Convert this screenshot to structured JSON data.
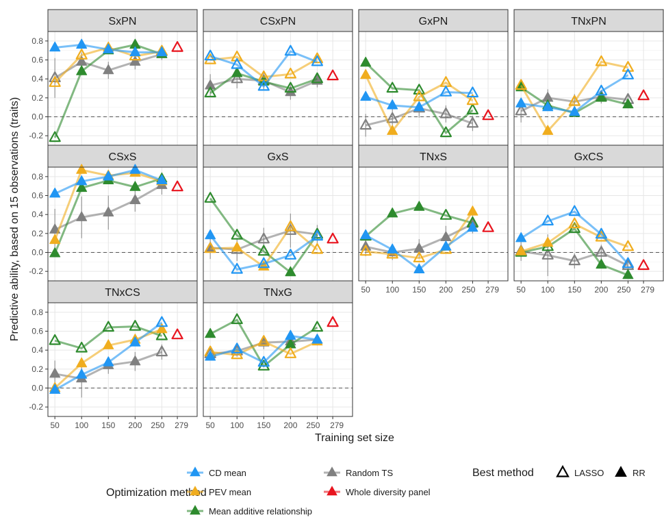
{
  "chart_data": {
    "type": "line",
    "ylabel": "Predictive ability, based on 15 observations (traits)",
    "xlabel": "Training set size",
    "x_tick_labels": [
      "50",
      "100",
      "150",
      "200",
      "250",
      "279"
    ],
    "y_tick_labels": [
      "-0.2",
      "0.0",
      "0.2",
      "0.4",
      "0.6",
      "0.8"
    ],
    "x_values": [
      50,
      100,
      150,
      200,
      250
    ],
    "whole_panel_x": 279,
    "ylim": [
      -0.3,
      0.9
    ],
    "reference_line_y": 0,
    "grid": true,
    "legend": {
      "title": "Optimization method",
      "items": [
        {
          "label": "CD mean",
          "color": "#2196F3"
        },
        {
          "label": "PEV mean",
          "color": "#F0AD1E"
        },
        {
          "label": "Mean additive relationship",
          "color": "#2E8B2E"
        },
        {
          "label": "Random TS",
          "color": "#808080"
        },
        {
          "label": "Whole diversity panel",
          "color": "#E8141E"
        }
      ],
      "shape_title": "Best method",
      "shape_items": [
        {
          "label": "LASSO",
          "shape": "open-triangle"
        },
        {
          "label": "RR",
          "shape": "filled-triangle"
        }
      ]
    },
    "panels": [
      {
        "title": "SxPN",
        "whole": 0.73,
        "series": [
          {
            "method": "CD mean",
            "y": [
              0.73,
              0.76,
              0.71,
              0.68,
              0.68
            ],
            "filled": [
              true,
              true,
              true,
              true,
              true
            ]
          },
          {
            "method": "PEV mean",
            "y": [
              0.36,
              0.65,
              0.73,
              0.64,
              0.69
            ],
            "filled": [
              false,
              false,
              true,
              false,
              false
            ]
          },
          {
            "method": "Mean additive relationship",
            "y": [
              -0.22,
              0.48,
              0.7,
              0.76,
              0.66
            ],
            "filled": [
              false,
              true,
              true,
              true,
              true
            ]
          },
          {
            "method": "Random TS",
            "y": [
              0.41,
              0.58,
              0.49,
              0.58,
              0.66
            ],
            "filled": [
              false,
              true,
              true,
              true,
              true
            ],
            "err": [
              0.21,
              0.1,
              0.09,
              0.08,
              0.06
            ]
          }
        ]
      },
      {
        "title": "CSxPN",
        "whole": 0.43,
        "series": [
          {
            "method": "CD mean",
            "y": [
              0.64,
              0.55,
              0.32,
              0.69,
              0.58
            ],
            "filled": [
              false,
              false,
              false,
              false,
              false
            ]
          },
          {
            "method": "PEV mean",
            "y": [
              0.6,
              0.63,
              0.42,
              0.45,
              0.61
            ],
            "filled": [
              false,
              false,
              false,
              false,
              false
            ]
          },
          {
            "method": "Mean additive relationship",
            "y": [
              0.25,
              0.46,
              0.37,
              0.3,
              0.4
            ],
            "filled": [
              false,
              true,
              true,
              false,
              false
            ]
          },
          {
            "method": "Random TS",
            "y": [
              0.33,
              0.4,
              0.38,
              0.26,
              0.38
            ],
            "filled": [
              true,
              false,
              false,
              true,
              true
            ],
            "err": [
              0.12,
              0.1,
              0.09,
              0.08,
              0.07
            ]
          }
        ]
      },
      {
        "title": "GxPN",
        "whole": 0.01,
        "series": [
          {
            "method": "CD mean",
            "y": [
              0.21,
              0.12,
              0.1,
              0.26,
              0.25
            ],
            "filled": [
              true,
              true,
              true,
              false,
              false
            ]
          },
          {
            "method": "PEV mean",
            "y": [
              0.44,
              -0.15,
              0.21,
              0.36,
              0.17
            ],
            "filled": [
              true,
              true,
              false,
              false,
              false
            ]
          },
          {
            "method": "Mean additive relationship",
            "y": [
              0.57,
              0.3,
              0.28,
              -0.17,
              0.07
            ],
            "filled": [
              true,
              false,
              false,
              false,
              false
            ]
          },
          {
            "method": "Random TS",
            "y": [
              -0.09,
              -0.02,
              0.09,
              0.03,
              -0.07
            ],
            "filled": [
              false,
              false,
              false,
              false,
              false
            ],
            "err": [
              0.12,
              0.1,
              0.1,
              0.09,
              0.08
            ]
          }
        ]
      },
      {
        "title": "TNxPN",
        "whole": 0.22,
        "series": [
          {
            "method": "CD mean",
            "y": [
              0.14,
              0.1,
              0.05,
              0.27,
              0.44
            ],
            "filled": [
              true,
              true,
              true,
              false,
              false
            ]
          },
          {
            "method": "PEV mean",
            "y": [
              0.33,
              -0.15,
              0.16,
              0.58,
              0.52
            ],
            "filled": [
              false,
              true,
              false,
              false,
              false
            ]
          },
          {
            "method": "Mean additive relationship",
            "y": [
              0.31,
              0.12,
              0.04,
              0.2,
              0.13
            ],
            "filled": [
              true,
              true,
              true,
              true,
              true
            ]
          },
          {
            "method": "Random TS",
            "y": [
              0.06,
              0.2,
              0.16,
              0.21,
              0.18
            ],
            "filled": [
              false,
              true,
              false,
              false,
              false
            ],
            "err": [
              0.12,
              0.09,
              0.08,
              0.07,
              0.07
            ]
          }
        ]
      },
      {
        "title": "CSxS",
        "whole": 0.69,
        "series": [
          {
            "method": "CD mean",
            "y": [
              0.62,
              0.75,
              0.8,
              0.87,
              0.76
            ],
            "filled": [
              true,
              true,
              true,
              true,
              true
            ]
          },
          {
            "method": "PEV mean",
            "y": [
              0.13,
              0.87,
              0.81,
              0.84,
              0.75
            ],
            "filled": [
              true,
              true,
              true,
              true,
              true
            ]
          },
          {
            "method": "Mean additive relationship",
            "y": [
              -0.01,
              0.68,
              0.76,
              0.69,
              0.78
            ],
            "filled": [
              true,
              true,
              true,
              true,
              true
            ]
          },
          {
            "method": "Random TS",
            "y": [
              0.24,
              0.37,
              0.42,
              0.55,
              0.71
            ],
            "filled": [
              true,
              true,
              true,
              true,
              true
            ],
            "err": [
              0.22,
              0.22,
              0.18,
              0.12,
              0.1
            ]
          }
        ]
      },
      {
        "title": "GxS",
        "whole": 0.14,
        "series": [
          {
            "method": "CD mean",
            "y": [
              0.18,
              -0.18,
              -0.12,
              -0.03,
              0.17
            ],
            "filled": [
              true,
              false,
              false,
              false,
              false
            ]
          },
          {
            "method": "PEV mean",
            "y": [
              0.04,
              0.05,
              -0.15,
              0.27,
              0.03
            ],
            "filled": [
              false,
              true,
              true,
              false,
              false
            ]
          },
          {
            "method": "Mean additive relationship",
            "y": [
              0.57,
              0.18,
              0.01,
              -0.21,
              0.19
            ],
            "filled": [
              false,
              false,
              false,
              true,
              false
            ]
          },
          {
            "method": "Random TS",
            "y": [
              0.05,
              0.03,
              0.14,
              0.23,
              0.19
            ],
            "filled": [
              true,
              false,
              false,
              false,
              false
            ],
            "err": [
              0.12,
              0.12,
              0.12,
              0.18,
              0.1
            ]
          }
        ]
      },
      {
        "title": "TNxS",
        "whole": 0.26,
        "series": [
          {
            "method": "CD mean",
            "y": [
              0.18,
              0.03,
              -0.18,
              0.06,
              0.26
            ],
            "filled": [
              true,
              true,
              true,
              true,
              true
            ]
          },
          {
            "method": "PEV mean",
            "y": [
              0.01,
              -0.02,
              -0.06,
              0.03,
              0.43
            ],
            "filled": [
              false,
              false,
              false,
              false,
              true
            ]
          },
          {
            "method": "Mean additive relationship",
            "y": [
              0.17,
              0.41,
              0.48,
              0.39,
              0.31
            ],
            "filled": [
              false,
              true,
              true,
              false,
              false
            ]
          },
          {
            "method": "Random TS",
            "y": [
              0.06,
              0.0,
              0.04,
              0.16,
              0.3
            ],
            "filled": [
              true,
              true,
              true,
              true,
              true
            ],
            "err": [
              0.1,
              0.08,
              0.1,
              0.12,
              0.1
            ]
          }
        ]
      },
      {
        "title": "GxCS",
        "whole": -0.14,
        "series": [
          {
            "method": "CD mean",
            "y": [
              0.15,
              0.33,
              0.43,
              0.19,
              -0.12
            ],
            "filled": [
              true,
              false,
              false,
              false,
              false
            ]
          },
          {
            "method": "PEV mean",
            "y": [
              0.01,
              0.1,
              0.3,
              0.16,
              0.06
            ],
            "filled": [
              true,
              true,
              false,
              false,
              false
            ]
          },
          {
            "method": "Mean additive relationship",
            "y": [
              0.0,
              0.06,
              0.25,
              -0.13,
              -0.24
            ],
            "filled": [
              false,
              false,
              false,
              true,
              true
            ]
          },
          {
            "method": "Random TS",
            "y": [
              0.01,
              -0.03,
              -0.09,
              0.0,
              -0.14
            ],
            "filled": [
              false,
              false,
              false,
              false,
              false
            ],
            "err": [
              0.1,
              0.22,
              0.08,
              0.08,
              0.07
            ]
          }
        ]
      },
      {
        "title": "TNxCS",
        "whole": 0.56,
        "series": [
          {
            "method": "CD mean",
            "y": [
              -0.02,
              0.14,
              0.27,
              0.48,
              0.69
            ],
            "filled": [
              true,
              true,
              true,
              true,
              false
            ]
          },
          {
            "method": "PEV mean",
            "y": [
              0.0,
              0.26,
              0.45,
              0.51,
              0.62
            ],
            "filled": [
              true,
              true,
              true,
              true,
              true
            ]
          },
          {
            "method": "Mean additive relationship",
            "y": [
              0.5,
              0.42,
              0.64,
              0.65,
              0.55
            ],
            "filled": [
              false,
              false,
              false,
              false,
              false
            ]
          },
          {
            "method": "Random TS",
            "y": [
              0.15,
              0.1,
              0.24,
              0.28,
              0.38
            ],
            "filled": [
              true,
              true,
              true,
              true,
              false
            ],
            "err": [
              0.14,
              0.2,
              0.09,
              0.1,
              0.08
            ]
          }
        ]
      },
      {
        "title": "TNxG",
        "whole": 0.69,
        "series": [
          {
            "method": "CD mean",
            "y": [
              0.33,
              0.41,
              0.27,
              0.55,
              0.51
            ],
            "filled": [
              true,
              false,
              false,
              true,
              true
            ]
          },
          {
            "method": "PEV mean",
            "y": [
              0.38,
              0.35,
              0.49,
              0.36,
              0.49
            ],
            "filled": [
              false,
              false,
              false,
              false,
              true
            ]
          },
          {
            "method": "Mean additive relationship",
            "y": [
              0.57,
              0.72,
              0.23,
              0.46,
              0.64
            ],
            "filled": [
              true,
              false,
              false,
              true,
              false
            ]
          },
          {
            "method": "Random TS",
            "y": [
              0.36,
              0.39,
              0.48,
              0.49,
              0.51
            ],
            "filled": [
              false,
              false,
              true,
              true,
              true
            ],
            "err": [
              0.06,
              0.06,
              0.07,
              0.07,
              0.06
            ]
          }
        ]
      }
    ]
  }
}
